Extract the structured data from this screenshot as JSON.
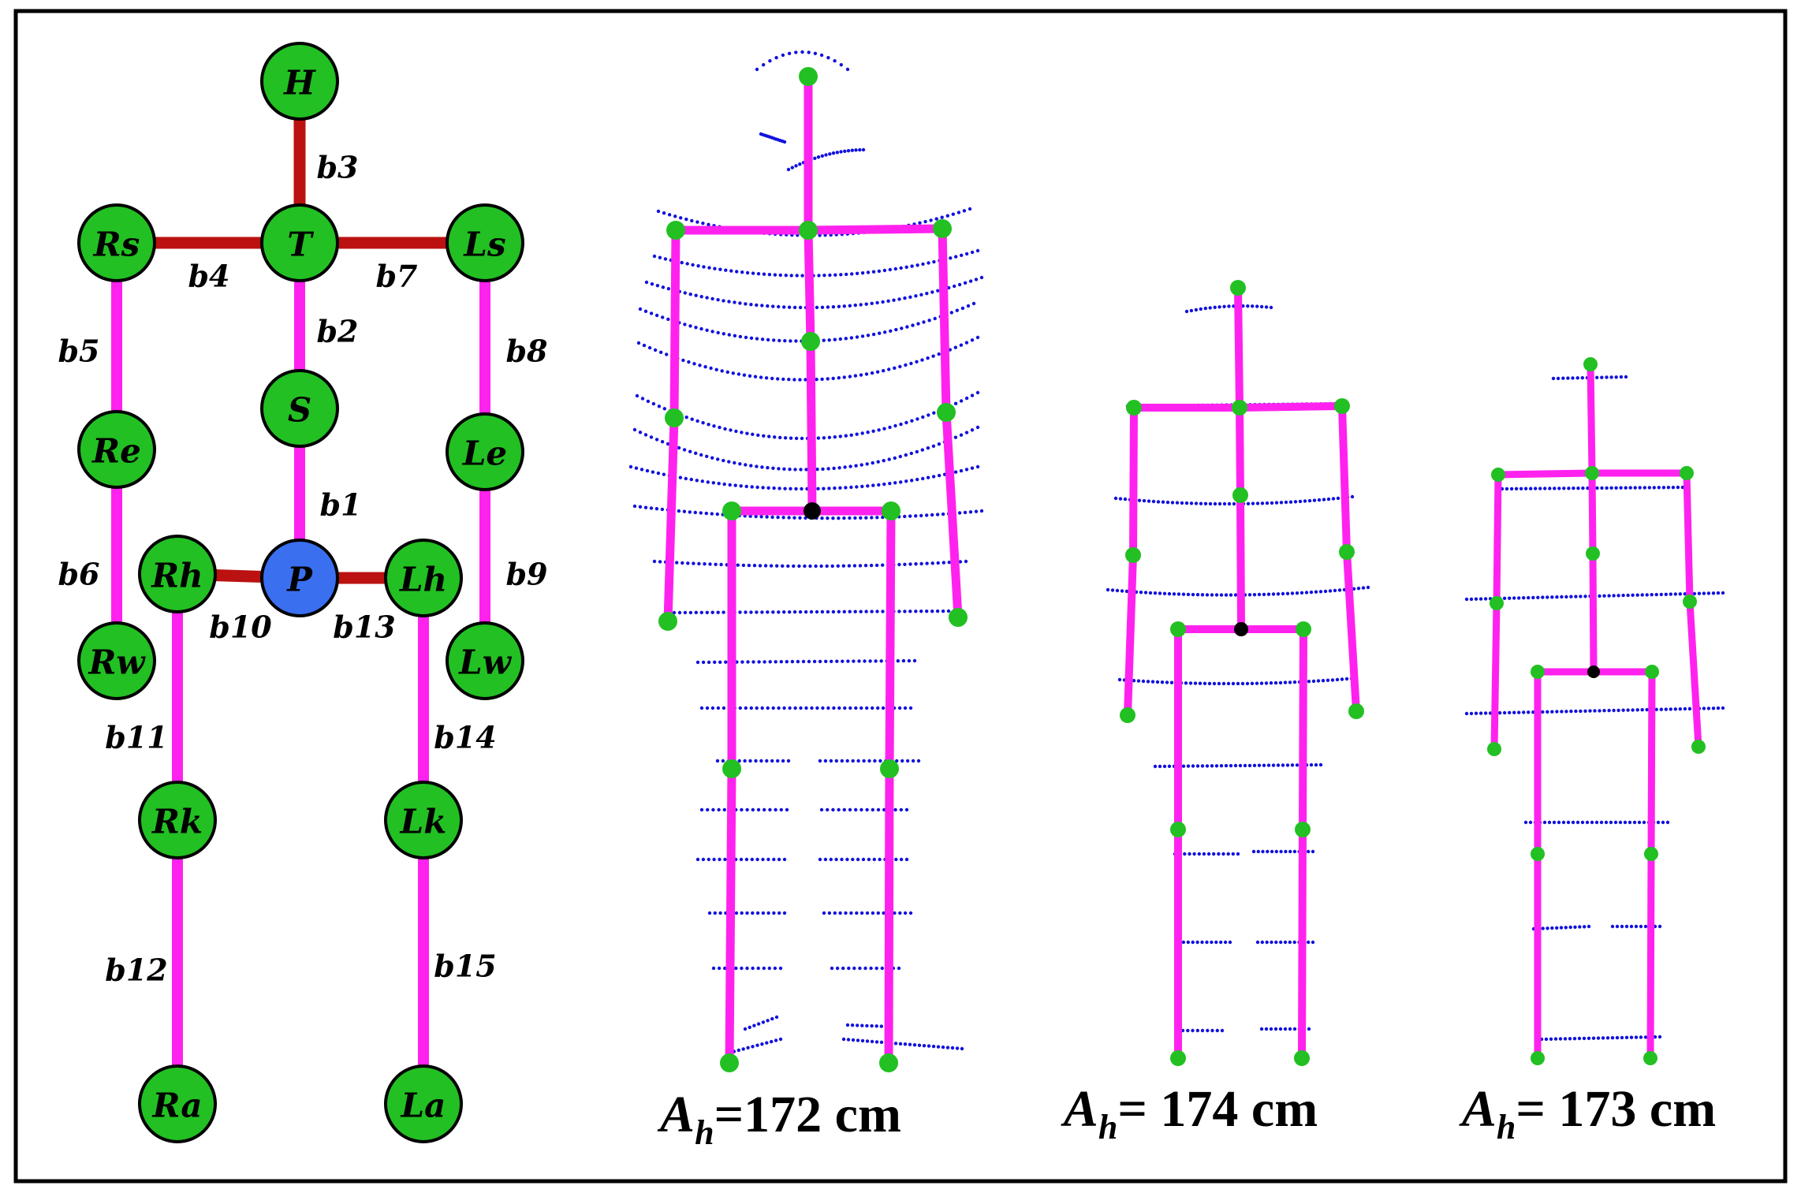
{
  "colors": {
    "frame": "#000000",
    "joint_fill": "#22c022",
    "pelvis_fill": "#3a6ff0",
    "trunk_bone": "#bb1111",
    "limb_bone": "#ff22ee",
    "point_cloud": "#1111dd",
    "root_joint": "#000000"
  },
  "skeleton_model": {
    "joints": [
      {
        "id": "H",
        "label": "H"
      },
      {
        "id": "T",
        "label": "T"
      },
      {
        "id": "Rs",
        "label": "Rs"
      },
      {
        "id": "Ls",
        "label": "Ls"
      },
      {
        "id": "S",
        "label": "S"
      },
      {
        "id": "Re",
        "label": "Re"
      },
      {
        "id": "Le",
        "label": "Le"
      },
      {
        "id": "P",
        "label": "P"
      },
      {
        "id": "Rh",
        "label": "Rh"
      },
      {
        "id": "Lh",
        "label": "Lh"
      },
      {
        "id": "Rw",
        "label": "Rw"
      },
      {
        "id": "Lw",
        "label": "Lw"
      },
      {
        "id": "Rk",
        "label": "Rk"
      },
      {
        "id": "Lk",
        "label": "Lk"
      },
      {
        "id": "Ra",
        "label": "Ra"
      },
      {
        "id": "La",
        "label": "La"
      }
    ],
    "bones": [
      {
        "id": "b1",
        "label": "b1",
        "from": "S",
        "to": "P",
        "kind": "limb"
      },
      {
        "id": "b2",
        "label": "b2",
        "from": "T",
        "to": "S",
        "kind": "limb"
      },
      {
        "id": "b3",
        "label": "b3",
        "from": "H",
        "to": "T",
        "kind": "trunk"
      },
      {
        "id": "b4",
        "label": "b4",
        "from": "Rs",
        "to": "T",
        "kind": "trunk"
      },
      {
        "id": "b5",
        "label": "b5",
        "from": "Rs",
        "to": "Re",
        "kind": "limb"
      },
      {
        "id": "b6",
        "label": "b6",
        "from": "Re",
        "to": "Rw",
        "kind": "limb"
      },
      {
        "id": "b7",
        "label": "b7",
        "from": "T",
        "to": "Ls",
        "kind": "trunk"
      },
      {
        "id": "b8",
        "label": "b8",
        "from": "Ls",
        "to": "Le",
        "kind": "limb"
      },
      {
        "id": "b9",
        "label": "b9",
        "from": "Le",
        "to": "Lw",
        "kind": "limb"
      },
      {
        "id": "b10",
        "label": "b10",
        "from": "Rh",
        "to": "P",
        "kind": "trunk"
      },
      {
        "id": "b11",
        "label": "b11",
        "from": "Rh",
        "to": "Rk",
        "kind": "limb"
      },
      {
        "id": "b12",
        "label": "b12",
        "from": "Rk",
        "to": "Ra",
        "kind": "limb"
      },
      {
        "id": "b13",
        "label": "b13",
        "from": "P",
        "to": "Lh",
        "kind": "trunk"
      },
      {
        "id": "b14",
        "label": "b14",
        "from": "Lh",
        "to": "Lk",
        "kind": "limb"
      },
      {
        "id": "b15",
        "label": "b15",
        "from": "Lk",
        "to": "La",
        "kind": "limb"
      }
    ]
  },
  "figures": [
    {
      "id": "figure-1",
      "caption_var": "A",
      "caption_sub": "h",
      "caption_value": "=172 cm"
    },
    {
      "id": "figure-2",
      "caption_var": "A",
      "caption_sub": "h",
      "caption_value": "= 174 cm"
    },
    {
      "id": "figure-3",
      "caption_var": "A",
      "caption_sub": "h",
      "caption_value": "= 173 cm"
    }
  ]
}
